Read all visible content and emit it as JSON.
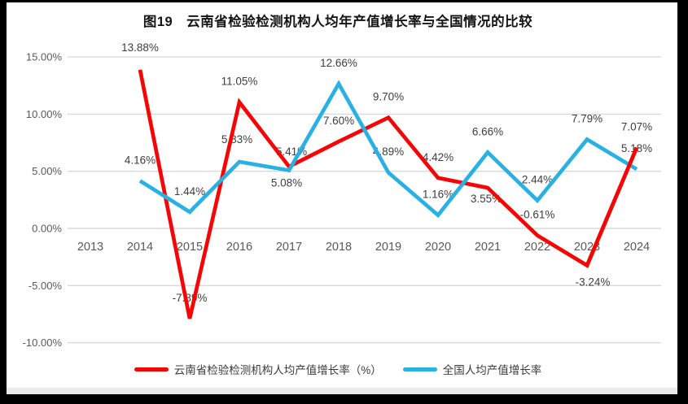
{
  "title": "图19　云南省检验检测机构人均年产值增长率与全国情况的比较",
  "colors": {
    "series_red": "#f60505",
    "series_blue": "#2ab1e4",
    "gridline": "#d9d9d9",
    "axis_text": "#595959",
    "data_label_text": "#3d3d3d",
    "frame": "#000000"
  },
  "chart_data": {
    "type": "line",
    "title": "图19　云南省检验检测机构人均年产值增长率与全国情况的比较",
    "categories": [
      "2013",
      "2014",
      "2015",
      "2016",
      "2017",
      "2018",
      "2019",
      "2020",
      "2021",
      "2022",
      "2023",
      "2024"
    ],
    "series": [
      {
        "name": "云南省检验检测机构人均产值增长率（%）",
        "color": "#f60505",
        "values": [
          null,
          13.88,
          -7.89,
          11.05,
          5.41,
          7.6,
          9.7,
          4.42,
          3.55,
          -0.61,
          -3.24,
          7.07
        ]
      },
      {
        "name": "全国人均产值增长率",
        "color": "#2ab1e4",
        "values": [
          null,
          4.16,
          1.44,
          5.83,
          5.08,
          12.66,
          4.89,
          1.16,
          6.66,
          2.44,
          7.79,
          5.18
        ]
      }
    ],
    "data_labels": true,
    "label_format": "0.00%",
    "yticks": [
      {
        "label": "15.00%",
        "value": 15
      },
      {
        "label": "10.00%",
        "value": 10
      },
      {
        "label": "5.00%",
        "value": 5
      },
      {
        "label": "0.00%",
        "value": 0
      },
      {
        "label": "-5.00%",
        "value": -5
      },
      {
        "label": "-10.00%",
        "value": -10
      }
    ],
    "ylim": [
      -10,
      15
    ],
    "grid": "horizontal",
    "legend_position": "bottom",
    "xlabel": "",
    "ylabel": ""
  }
}
